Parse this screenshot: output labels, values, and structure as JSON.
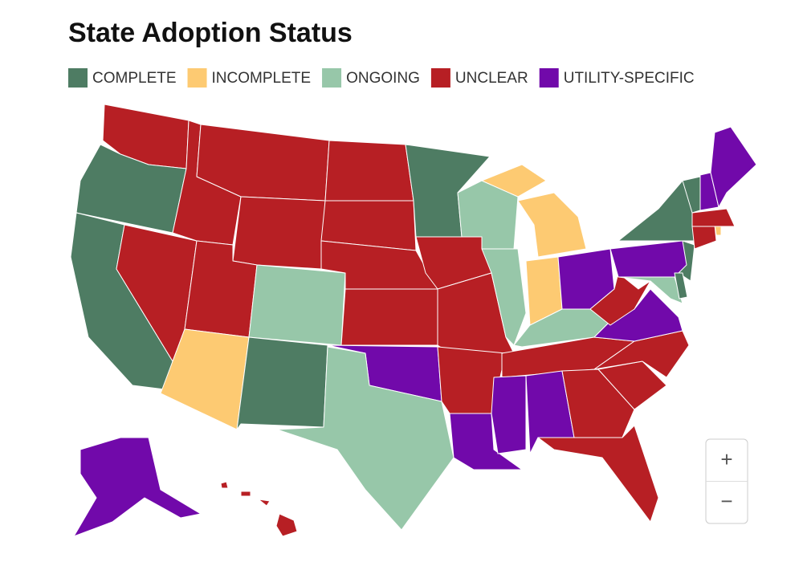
{
  "title": "State Adoption Status",
  "legend": [
    {
      "label": "COMPLETE",
      "color": "#4e7c63"
    },
    {
      "label": "INCOMPLETE",
      "color": "#fdca72"
    },
    {
      "label": "ONGOING",
      "color": "#97c7a9"
    },
    {
      "label": "UNCLEAR",
      "color": "#b71f24"
    },
    {
      "label": "UTILITY-SPECIFIC",
      "color": "#7109aa"
    }
  ],
  "regions": [
    {
      "status": "UNCLEAR"
    },
    {
      "status": "COMPLETE"
    },
    {
      "status": "COMPLETE"
    },
    {
      "status": "UNCLEAR"
    },
    {
      "status": "UNCLEAR"
    },
    {
      "status": "UNCLEAR"
    },
    {
      "status": "UNCLEAR"
    },
    {
      "status": "UNCLEAR"
    },
    {
      "status": "INCOMPLETE"
    },
    {
      "status": "ONGOING"
    },
    {
      "status": "COMPLETE"
    },
    {
      "status": "UNCLEAR"
    },
    {
      "status": "UNCLEAR"
    },
    {
      "status": "UNCLEAR"
    },
    {
      "status": "UNCLEAR"
    },
    {
      "status": "UTILITY-SPECIFIC"
    },
    {
      "status": "ONGOING"
    },
    {
      "status": "COMPLETE"
    },
    {
      "status": "UNCLEAR"
    },
    {
      "status": "UNCLEAR"
    },
    {
      "status": "UNCLEAR"
    },
    {
      "status": "UTILITY-SPECIFIC"
    },
    {
      "status": "ONGOING"
    },
    {
      "status": "ONGOING"
    },
    {
      "status": "INCOMPLETE"
    },
    {
      "status": "INCOMPLETE"
    },
    {
      "status": "UTILITY-SPECIFIC"
    },
    {
      "status": "ONGOING"
    },
    {
      "status": "UNCLEAR"
    },
    {
      "status": "UTILITY-SPECIFIC"
    },
    {
      "status": "UTILITY-SPECIFIC"
    },
    {
      "status": "UNCLEAR"
    },
    {
      "status": "UNCLEAR"
    },
    {
      "status": "UNCLEAR"
    },
    {
      "status": "UNCLEAR"
    },
    {
      "status": "UTILITY-SPECIFIC"
    },
    {
      "status": "UNCLEAR"
    },
    {
      "status": "UTILITY-SPECIFIC"
    },
    {
      "status": "COMPLETE"
    },
    {
      "status": "COMPLETE"
    },
    {
      "status": "ONGOING"
    },
    {
      "status": "COMPLETE"
    },
    {
      "status": "UNCLEAR"
    },
    {
      "status": "INCOMPLETE"
    },
    {
      "status": "UNCLEAR"
    },
    {
      "status": "COMPLETE"
    },
    {
      "status": "UTILITY-SPECIFIC"
    },
    {
      "status": "UTILITY-SPECIFIC"
    },
    {
      "status": "UTILITY-SPECIFIC"
    },
    {
      "status": "UNCLEAR"
    },
    {
      "status": "UTILITY-SPECIFIC"
    }
  ],
  "zoom": {
    "in": "+",
    "out": "−"
  }
}
